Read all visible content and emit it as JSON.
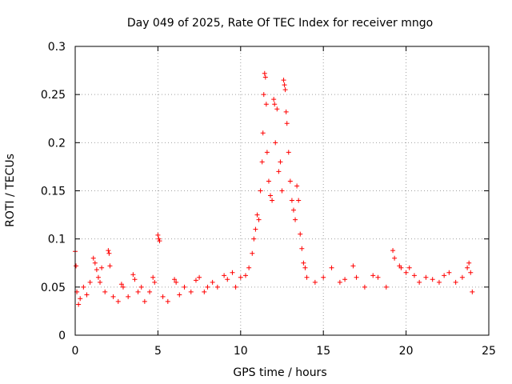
{
  "chart_data": {
    "type": "scatter",
    "title": "Day 049 of 2025, Rate Of TEC Index for receiver mngo",
    "xlabel": "GPS time / hours",
    "ylabel": "ROTI / TECUs",
    "xlim": [
      0,
      25
    ],
    "ylim": [
      0,
      0.3
    ],
    "xticks": [
      0,
      5,
      10,
      15,
      20,
      25
    ],
    "xtick_labels": [
      "0",
      "5",
      "10",
      "15",
      "20",
      "25"
    ],
    "yticks": [
      0,
      0.05,
      0.1,
      0.15,
      0.2,
      0.25,
      0.3
    ],
    "ytick_labels": [
      "0",
      "0.05",
      "0.1",
      "0.15",
      "0.2",
      "0.25",
      "0.3"
    ],
    "grid": true,
    "marker": "+",
    "color": "#ff0000",
    "series": [
      {
        "name": "ROTI",
        "points": [
          [
            0.0,
            0.087
          ],
          [
            0.05,
            0.072
          ],
          [
            0.1,
            0.045
          ],
          [
            0.2,
            0.032
          ],
          [
            0.3,
            0.038
          ],
          [
            0.5,
            0.05
          ],
          [
            0.7,
            0.042
          ],
          [
            0.9,
            0.055
          ],
          [
            1.1,
            0.08
          ],
          [
            1.2,
            0.075
          ],
          [
            1.3,
            0.068
          ],
          [
            1.4,
            0.06
          ],
          [
            1.5,
            0.055
          ],
          [
            1.6,
            0.07
          ],
          [
            1.8,
            0.045
          ],
          [
            2.0,
            0.088
          ],
          [
            2.05,
            0.085
          ],
          [
            2.1,
            0.072
          ],
          [
            2.3,
            0.04
          ],
          [
            2.6,
            0.035
          ],
          [
            2.8,
            0.053
          ],
          [
            2.9,
            0.05
          ],
          [
            3.2,
            0.04
          ],
          [
            3.5,
            0.063
          ],
          [
            3.6,
            0.058
          ],
          [
            3.8,
            0.045
          ],
          [
            4.0,
            0.05
          ],
          [
            4.2,
            0.035
          ],
          [
            4.5,
            0.045
          ],
          [
            4.7,
            0.06
          ],
          [
            4.8,
            0.055
          ],
          [
            5.0,
            0.104
          ],
          [
            5.05,
            0.1
          ],
          [
            5.1,
            0.098
          ],
          [
            5.3,
            0.04
          ],
          [
            5.6,
            0.035
          ],
          [
            6.0,
            0.058
          ],
          [
            6.1,
            0.055
          ],
          [
            6.3,
            0.042
          ],
          [
            6.6,
            0.05
          ],
          [
            7.0,
            0.045
          ],
          [
            7.3,
            0.057
          ],
          [
            7.5,
            0.06
          ],
          [
            7.8,
            0.045
          ],
          [
            8.0,
            0.05
          ],
          [
            8.3,
            0.055
          ],
          [
            8.6,
            0.05
          ],
          [
            9.0,
            0.062
          ],
          [
            9.2,
            0.058
          ],
          [
            9.5,
            0.065
          ],
          [
            9.7,
            0.05
          ],
          [
            10.0,
            0.06
          ],
          [
            10.3,
            0.062
          ],
          [
            10.5,
            0.07
          ],
          [
            10.7,
            0.085
          ],
          [
            10.8,
            0.1
          ],
          [
            10.9,
            0.11
          ],
          [
            11.0,
            0.125
          ],
          [
            11.1,
            0.12
          ],
          [
            11.2,
            0.15
          ],
          [
            11.3,
            0.18
          ],
          [
            11.35,
            0.21
          ],
          [
            11.4,
            0.25
          ],
          [
            11.45,
            0.272
          ],
          [
            11.5,
            0.268
          ],
          [
            11.55,
            0.24
          ],
          [
            11.6,
            0.19
          ],
          [
            11.7,
            0.16
          ],
          [
            11.8,
            0.145
          ],
          [
            11.9,
            0.14
          ],
          [
            12.0,
            0.245
          ],
          [
            12.05,
            0.24
          ],
          [
            12.1,
            0.2
          ],
          [
            12.2,
            0.235
          ],
          [
            12.3,
            0.17
          ],
          [
            12.4,
            0.18
          ],
          [
            12.5,
            0.15
          ],
          [
            12.6,
            0.265
          ],
          [
            12.65,
            0.26
          ],
          [
            12.7,
            0.255
          ],
          [
            12.75,
            0.232
          ],
          [
            12.8,
            0.22
          ],
          [
            12.9,
            0.19
          ],
          [
            13.0,
            0.16
          ],
          [
            13.1,
            0.14
          ],
          [
            13.2,
            0.13
          ],
          [
            13.3,
            0.12
          ],
          [
            13.4,
            0.155
          ],
          [
            13.5,
            0.14
          ],
          [
            13.6,
            0.105
          ],
          [
            13.7,
            0.09
          ],
          [
            13.8,
            0.075
          ],
          [
            13.9,
            0.07
          ],
          [
            14.0,
            0.06
          ],
          [
            14.5,
            0.055
          ],
          [
            15.0,
            0.06
          ],
          [
            15.5,
            0.07
          ],
          [
            16.0,
            0.055
          ],
          [
            16.3,
            0.058
          ],
          [
            16.8,
            0.072
          ],
          [
            17.0,
            0.06
          ],
          [
            17.5,
            0.05
          ],
          [
            18.0,
            0.062
          ],
          [
            18.3,
            0.06
          ],
          [
            18.8,
            0.05
          ],
          [
            19.2,
            0.088
          ],
          [
            19.3,
            0.08
          ],
          [
            19.6,
            0.072
          ],
          [
            19.7,
            0.07
          ],
          [
            20.0,
            0.065
          ],
          [
            20.2,
            0.07
          ],
          [
            20.5,
            0.062
          ],
          [
            20.8,
            0.055
          ],
          [
            21.2,
            0.06
          ],
          [
            21.6,
            0.058
          ],
          [
            22.0,
            0.055
          ],
          [
            22.3,
            0.062
          ],
          [
            22.6,
            0.065
          ],
          [
            23.0,
            0.055
          ],
          [
            23.4,
            0.06
          ],
          [
            23.7,
            0.07
          ],
          [
            23.8,
            0.075
          ],
          [
            23.9,
            0.065
          ],
          [
            24.0,
            0.045
          ]
        ]
      }
    ]
  }
}
